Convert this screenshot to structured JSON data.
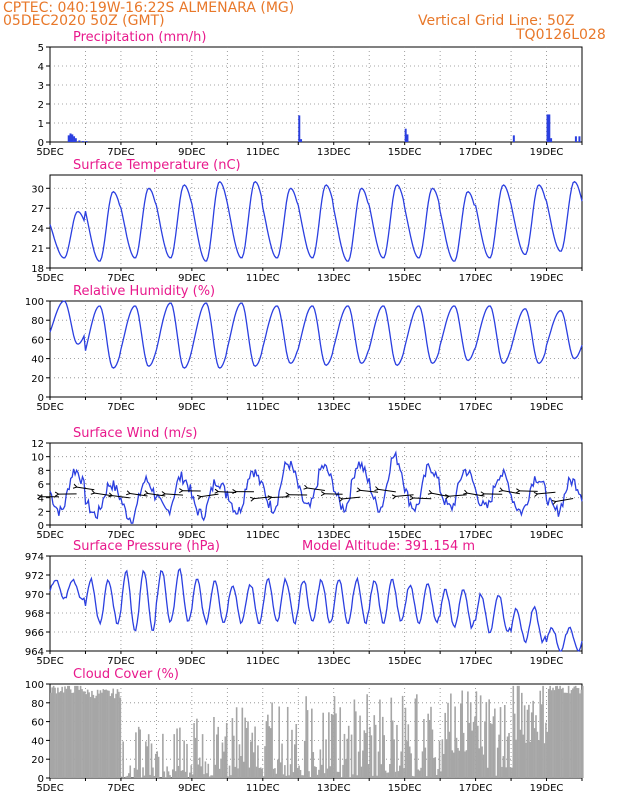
{
  "header": {
    "line1": "CPTEC:  040:19W-16:22S  ALMENARA (MG)",
    "line2": "05DEC2020 50Z (GMT)",
    "grid_note": "Vertical Grid Line: 50Z",
    "code": "TQ0126L028"
  },
  "colors": {
    "header": "#e8782a",
    "title": "#e8198c",
    "line": "#2b3fe0",
    "cloud": "#a6a6a6",
    "axis": "#000000"
  },
  "chart_data": [
    {
      "type": "bar",
      "title": "Precipitation (mm/h)",
      "ylim": [
        0,
        5
      ],
      "yticks": [
        0,
        1,
        2,
        3,
        4,
        5
      ],
      "x_tick_labels": [
        "5DEC",
        "7DEC",
        "9DEC",
        "11DEC",
        "13DEC",
        "15DEC",
        "17DEC",
        "19DEC"
      ],
      "x_range_days": [
        5,
        20
      ],
      "grid": true,
      "bars": [
        {
          "day": 5.5,
          "value": 0.35
        },
        {
          "day": 5.55,
          "value": 0.45
        },
        {
          "day": 5.6,
          "value": 0.4
        },
        {
          "day": 5.65,
          "value": 0.3
        },
        {
          "day": 5.7,
          "value": 0.2
        },
        {
          "day": 5.8,
          "value": 0.08
        },
        {
          "day": 5.9,
          "value": 0.05
        },
        {
          "day": 6.0,
          "value": 0.05
        },
        {
          "day": 12.0,
          "value": 1.4
        },
        {
          "day": 12.05,
          "value": 0.15
        },
        {
          "day": 15.0,
          "value": 0.7
        },
        {
          "day": 15.05,
          "value": 0.4
        },
        {
          "day": 18.05,
          "value": 0.35
        },
        {
          "day": 19.0,
          "value": 1.45
        },
        {
          "day": 19.05,
          "value": 1.45
        },
        {
          "day": 19.1,
          "value": 0.2
        },
        {
          "day": 19.8,
          "value": 0.3
        },
        {
          "day": 19.9,
          "value": 0.3
        }
      ]
    },
    {
      "type": "line",
      "title": "Surface Temperature (nC)",
      "ylim": [
        18,
        32
      ],
      "yticks": [
        18,
        21,
        24,
        27,
        30
      ],
      "x_tick_labels": [
        "5DEC",
        "7DEC",
        "9DEC",
        "11DEC",
        "13DEC",
        "15DEC",
        "17DEC",
        "19DEC"
      ],
      "grid": true,
      "daily_min": [
        19.5,
        19.0,
        19.5,
        19.5,
        19.0,
        19.5,
        19.5,
        19.5,
        19.0,
        19.5,
        19.5,
        19.0,
        19.5,
        20.0,
        20.5
      ],
      "daily_max": [
        26.5,
        29.5,
        30.0,
        30.5,
        31.0,
        31.0,
        30.0,
        30.5,
        30.0,
        30.5,
        30.0,
        29.5,
        30.5,
        30.5,
        31.0
      ]
    },
    {
      "type": "line",
      "title": "Relative Humidity (%)",
      "ylim": [
        0,
        100
      ],
      "yticks": [
        0,
        20,
        40,
        60,
        80,
        100
      ],
      "x_tick_labels": [
        "5DEC",
        "7DEC",
        "9DEC",
        "11DEC",
        "13DEC",
        "15DEC",
        "17DEC",
        "19DEC"
      ],
      "grid": true,
      "daily_min": [
        55,
        30,
        32,
        30,
        30,
        32,
        35,
        33,
        35,
        33,
        35,
        38,
        35,
        35,
        40
      ],
      "daily_max": [
        100,
        95,
        95,
        98,
        98,
        98,
        95,
        95,
        95,
        95,
        95,
        95,
        95,
        92,
        90
      ]
    },
    {
      "type": "line",
      "title": "Surface Wind (m/s)",
      "ylim": [
        0,
        12
      ],
      "yticks": [
        0,
        2,
        4,
        6,
        8,
        10,
        12
      ],
      "x_tick_labels": [
        "5DEC",
        "7DEC",
        "9DEC",
        "11DEC",
        "13DEC",
        "15DEC",
        "17DEC",
        "19DEC"
      ],
      "grid": true,
      "daily_min": [
        2.0,
        1.5,
        1.0,
        2.0,
        1.5,
        2.0,
        2.5,
        2.5,
        2.5,
        2.5,
        2.5,
        2.5,
        2.5,
        2.0,
        2.0
      ],
      "daily_max": [
        8.0,
        6.0,
        6.5,
        7.0,
        6.5,
        8.0,
        9.0,
        8.5,
        9.0,
        10.0,
        8.5,
        8.0,
        7.5,
        7.0,
        6.5
      ],
      "wind_arrows": "easterly, every 12 h"
    },
    {
      "type": "line",
      "title": "Surface Pressure (hPa)",
      "annotation": "Model Altitude: 391.154 m",
      "ylim": [
        964,
        974
      ],
      "yticks": [
        964,
        966,
        968,
        970,
        972,
        974
      ],
      "x_tick_labels": [
        "5DEC",
        "7DEC",
        "9DEC",
        "11DEC",
        "13DEC",
        "15DEC",
        "17DEC",
        "19DEC"
      ],
      "grid": true,
      "daily_high": [
        971.5,
        971.5,
        972.5,
        972.5,
        971.5,
        971.0,
        971.5,
        971.5,
        971.5,
        971.5,
        971.0,
        970.5,
        970.0,
        968.5,
        966.5
      ],
      "daily_low": [
        969.5,
        967.0,
        966.0,
        967.0,
        967.0,
        967.0,
        967.0,
        967.0,
        967.0,
        967.0,
        967.0,
        966.5,
        966.0,
        965.0,
        964.0
      ]
    },
    {
      "type": "bar",
      "title": "Cloud Cover (%)",
      "ylim": [
        0,
        100
      ],
      "yticks": [
        0,
        20,
        40,
        60,
        80,
        100
      ],
      "x_tick_labels": [
        "5DEC",
        "7DEC",
        "9DEC",
        "11DEC",
        "13DEC",
        "15DEC",
        "17DEC",
        "19DEC"
      ],
      "grid": true,
      "daily_mean": [
        95,
        90,
        20,
        25,
        40,
        45,
        50,
        55,
        55,
        55,
        55,
        60,
        55,
        70,
        95
      ]
    }
  ]
}
